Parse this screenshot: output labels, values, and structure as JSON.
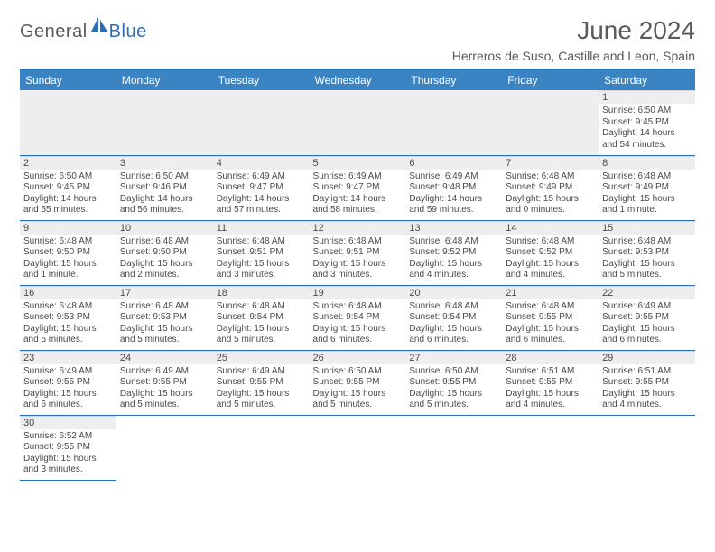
{
  "branding": {
    "logo_word1": "General",
    "logo_word2": "Blue",
    "logo_color_gray": "#5a5a5a",
    "logo_color_blue": "#2a6db8"
  },
  "header": {
    "title": "June 2024",
    "subtitle": "Herreros de Suso, Castille and Leon, Spain"
  },
  "colors": {
    "header_bg": "#3b84c4",
    "header_border": "#2a6db8",
    "row_divider": "#2a6db8",
    "daynum_bg": "#eeeeee",
    "text": "#4a4a4a",
    "page_bg": "#ffffff"
  },
  "typography": {
    "title_fontsize": 28,
    "subtitle_fontsize": 14,
    "day_header_fontsize": 12,
    "cell_fontsize": 10,
    "font_family": "Arial"
  },
  "calendar": {
    "day_headers": [
      "Sunday",
      "Monday",
      "Tuesday",
      "Wednesday",
      "Thursday",
      "Friday",
      "Saturday"
    ],
    "weeks": [
      [
        null,
        null,
        null,
        null,
        null,
        null,
        {
          "n": "1",
          "sr": "Sunrise: 6:50 AM",
          "ss": "Sunset: 9:45 PM",
          "dl": "Daylight: 14 hours and 54 minutes."
        }
      ],
      [
        {
          "n": "2",
          "sr": "Sunrise: 6:50 AM",
          "ss": "Sunset: 9:45 PM",
          "dl": "Daylight: 14 hours and 55 minutes."
        },
        {
          "n": "3",
          "sr": "Sunrise: 6:50 AM",
          "ss": "Sunset: 9:46 PM",
          "dl": "Daylight: 14 hours and 56 minutes."
        },
        {
          "n": "4",
          "sr": "Sunrise: 6:49 AM",
          "ss": "Sunset: 9:47 PM",
          "dl": "Daylight: 14 hours and 57 minutes."
        },
        {
          "n": "5",
          "sr": "Sunrise: 6:49 AM",
          "ss": "Sunset: 9:47 PM",
          "dl": "Daylight: 14 hours and 58 minutes."
        },
        {
          "n": "6",
          "sr": "Sunrise: 6:49 AM",
          "ss": "Sunset: 9:48 PM",
          "dl": "Daylight: 14 hours and 59 minutes."
        },
        {
          "n": "7",
          "sr": "Sunrise: 6:48 AM",
          "ss": "Sunset: 9:49 PM",
          "dl": "Daylight: 15 hours and 0 minutes."
        },
        {
          "n": "8",
          "sr": "Sunrise: 6:48 AM",
          "ss": "Sunset: 9:49 PM",
          "dl": "Daylight: 15 hours and 1 minute."
        }
      ],
      [
        {
          "n": "9",
          "sr": "Sunrise: 6:48 AM",
          "ss": "Sunset: 9:50 PM",
          "dl": "Daylight: 15 hours and 1 minute."
        },
        {
          "n": "10",
          "sr": "Sunrise: 6:48 AM",
          "ss": "Sunset: 9:50 PM",
          "dl": "Daylight: 15 hours and 2 minutes."
        },
        {
          "n": "11",
          "sr": "Sunrise: 6:48 AM",
          "ss": "Sunset: 9:51 PM",
          "dl": "Daylight: 15 hours and 3 minutes."
        },
        {
          "n": "12",
          "sr": "Sunrise: 6:48 AM",
          "ss": "Sunset: 9:51 PM",
          "dl": "Daylight: 15 hours and 3 minutes."
        },
        {
          "n": "13",
          "sr": "Sunrise: 6:48 AM",
          "ss": "Sunset: 9:52 PM",
          "dl": "Daylight: 15 hours and 4 minutes."
        },
        {
          "n": "14",
          "sr": "Sunrise: 6:48 AM",
          "ss": "Sunset: 9:52 PM",
          "dl": "Daylight: 15 hours and 4 minutes."
        },
        {
          "n": "15",
          "sr": "Sunrise: 6:48 AM",
          "ss": "Sunset: 9:53 PM",
          "dl": "Daylight: 15 hours and 5 minutes."
        }
      ],
      [
        {
          "n": "16",
          "sr": "Sunrise: 6:48 AM",
          "ss": "Sunset: 9:53 PM",
          "dl": "Daylight: 15 hours and 5 minutes."
        },
        {
          "n": "17",
          "sr": "Sunrise: 6:48 AM",
          "ss": "Sunset: 9:53 PM",
          "dl": "Daylight: 15 hours and 5 minutes."
        },
        {
          "n": "18",
          "sr": "Sunrise: 6:48 AM",
          "ss": "Sunset: 9:54 PM",
          "dl": "Daylight: 15 hours and 5 minutes."
        },
        {
          "n": "19",
          "sr": "Sunrise: 6:48 AM",
          "ss": "Sunset: 9:54 PM",
          "dl": "Daylight: 15 hours and 6 minutes."
        },
        {
          "n": "20",
          "sr": "Sunrise: 6:48 AM",
          "ss": "Sunset: 9:54 PM",
          "dl": "Daylight: 15 hours and 6 minutes."
        },
        {
          "n": "21",
          "sr": "Sunrise: 6:48 AM",
          "ss": "Sunset: 9:55 PM",
          "dl": "Daylight: 15 hours and 6 minutes."
        },
        {
          "n": "22",
          "sr": "Sunrise: 6:49 AM",
          "ss": "Sunset: 9:55 PM",
          "dl": "Daylight: 15 hours and 6 minutes."
        }
      ],
      [
        {
          "n": "23",
          "sr": "Sunrise: 6:49 AM",
          "ss": "Sunset: 9:55 PM",
          "dl": "Daylight: 15 hours and 6 minutes."
        },
        {
          "n": "24",
          "sr": "Sunrise: 6:49 AM",
          "ss": "Sunset: 9:55 PM",
          "dl": "Daylight: 15 hours and 5 minutes."
        },
        {
          "n": "25",
          "sr": "Sunrise: 6:49 AM",
          "ss": "Sunset: 9:55 PM",
          "dl": "Daylight: 15 hours and 5 minutes."
        },
        {
          "n": "26",
          "sr": "Sunrise: 6:50 AM",
          "ss": "Sunset: 9:55 PM",
          "dl": "Daylight: 15 hours and 5 minutes."
        },
        {
          "n": "27",
          "sr": "Sunrise: 6:50 AM",
          "ss": "Sunset: 9:55 PM",
          "dl": "Daylight: 15 hours and 5 minutes."
        },
        {
          "n": "28",
          "sr": "Sunrise: 6:51 AM",
          "ss": "Sunset: 9:55 PM",
          "dl": "Daylight: 15 hours and 4 minutes."
        },
        {
          "n": "29",
          "sr": "Sunrise: 6:51 AM",
          "ss": "Sunset: 9:55 PM",
          "dl": "Daylight: 15 hours and 4 minutes."
        }
      ],
      [
        {
          "n": "30",
          "sr": "Sunrise: 6:52 AM",
          "ss": "Sunset: 9:55 PM",
          "dl": "Daylight: 15 hours and 3 minutes."
        },
        null,
        null,
        null,
        null,
        null,
        null
      ]
    ]
  }
}
